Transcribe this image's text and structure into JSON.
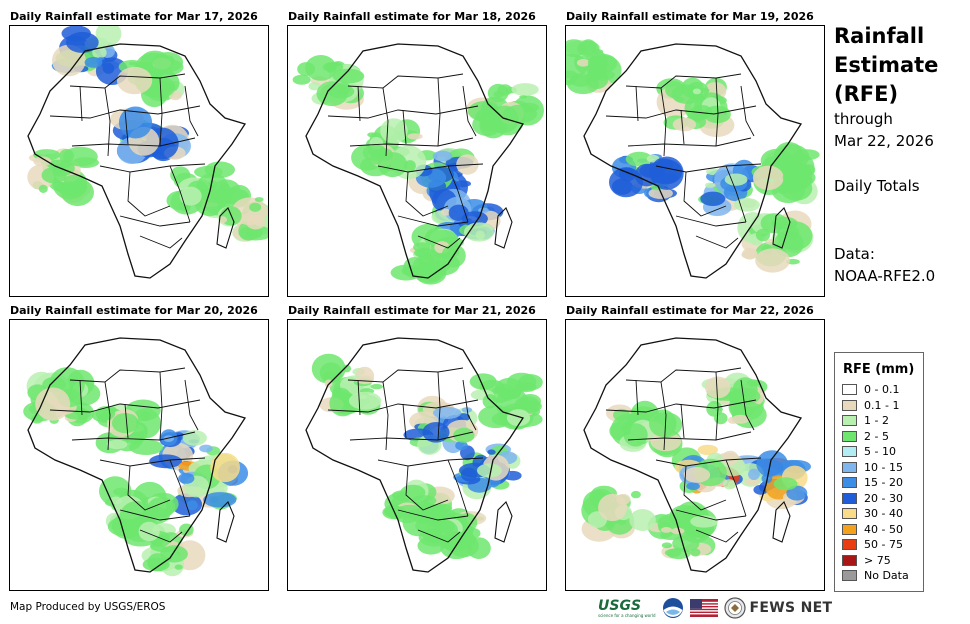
{
  "panels": [
    {
      "title": "Daily Rainfall estimate for Mar 17, 2026"
    },
    {
      "title": "Daily Rainfall estimate for Mar 18, 2026"
    },
    {
      "title": "Daily Rainfall estimate for Mar 19, 2026"
    },
    {
      "title": "Daily Rainfall estimate for Mar 20, 2026"
    },
    {
      "title": "Daily Rainfall estimate for Mar 21, 2026"
    },
    {
      "title": "Daily Rainfall estimate for Mar 22, 2026"
    }
  ],
  "side": {
    "title_lines": [
      "Rainfall",
      "Estimate",
      "(RFE)"
    ],
    "through": "through",
    "date": "Mar 22, 2026",
    "totals": "Daily Totals",
    "data_label": "Data:",
    "data_source": "NOAA-RFE2.0"
  },
  "legend": {
    "title": "RFE (mm)",
    "items": [
      {
        "label": "0 - 0.1",
        "color": "#ffffff"
      },
      {
        "label": "0.1 - 1",
        "color": "#e8d9bd"
      },
      {
        "label": "1 - 2",
        "color": "#b8f0b0"
      },
      {
        "label": "2 - 5",
        "color": "#6ee66e"
      },
      {
        "label": "5 - 10",
        "color": "#b4ecf4"
      },
      {
        "label": "10 - 15",
        "color": "#7fb6ee"
      },
      {
        "label": "15 - 20",
        "color": "#3c8de6"
      },
      {
        "label": "20 - 30",
        "color": "#1f5ed8"
      },
      {
        "label": "30 - 40",
        "color": "#f8dc8a"
      },
      {
        "label": "40 - 50",
        "color": "#f2a21c"
      },
      {
        "label": "50 - 75",
        "color": "#ea3c12"
      },
      {
        "label": "> 75",
        "color": "#a81616"
      },
      {
        "label": "No Data",
        "color": "#9a9a9a"
      }
    ]
  },
  "credit": "Map Produced by USGS/EROS",
  "logos": {
    "usgs": "USGS",
    "usgs_tagline": "science for a changing world",
    "fews": "FEWS NET"
  }
}
